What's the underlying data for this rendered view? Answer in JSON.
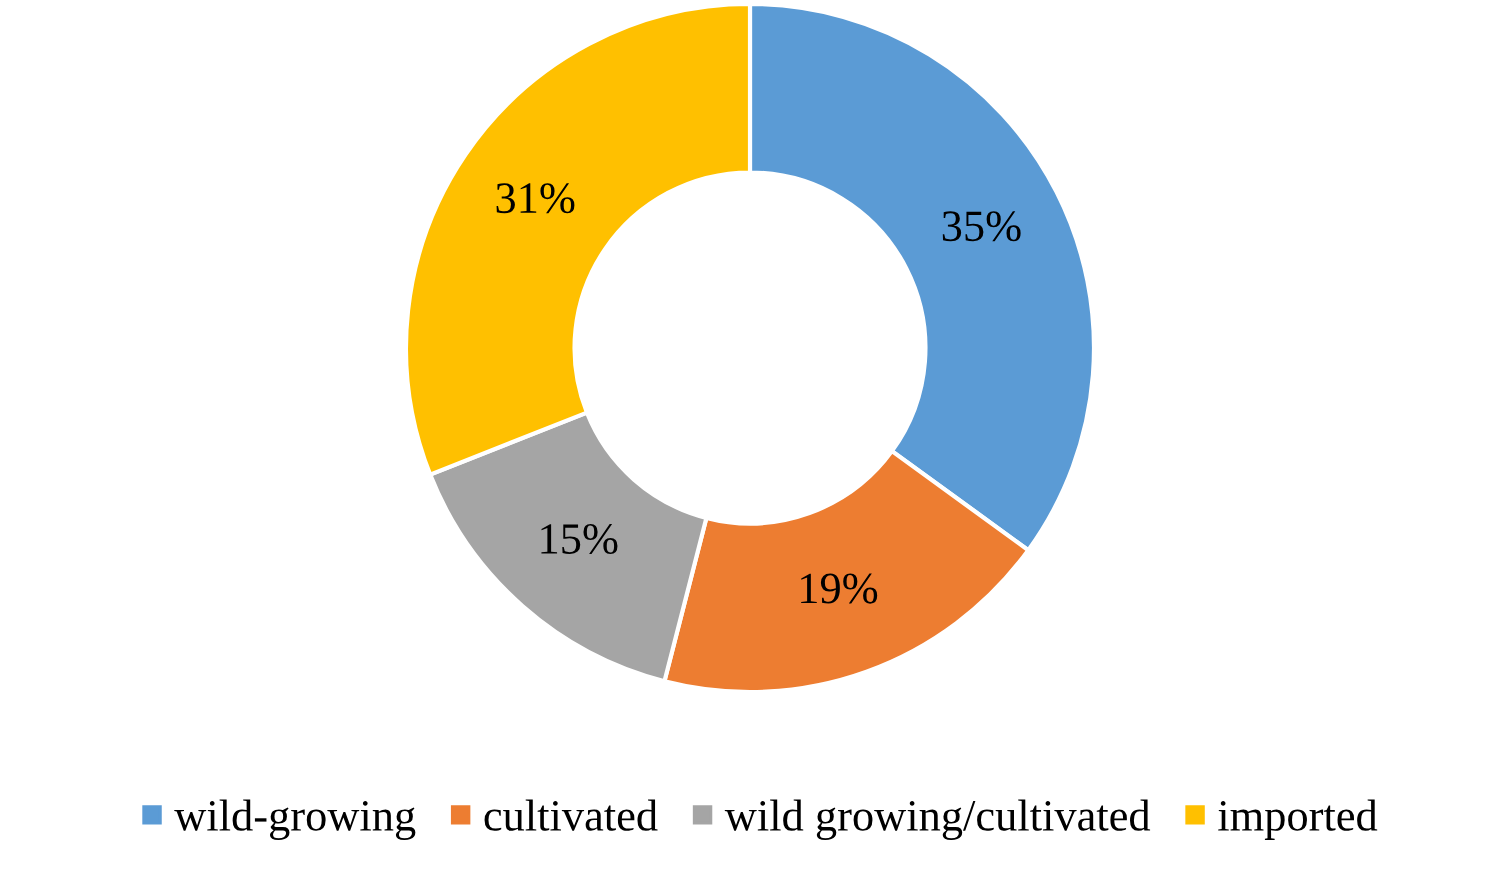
{
  "chart_data": {
    "type": "donut",
    "categories": [
      "wild-growing",
      "cultivated",
      "wild growing/cultivated",
      "imported"
    ],
    "values": [
      35,
      19,
      15,
      31
    ],
    "value_labels": [
      "35%",
      "19%",
      "15%",
      "31%"
    ],
    "colors": [
      "#5b9bd5",
      "#ed7d31",
      "#a5a5a5",
      "#ffc000"
    ],
    "legend": "bottom"
  }
}
